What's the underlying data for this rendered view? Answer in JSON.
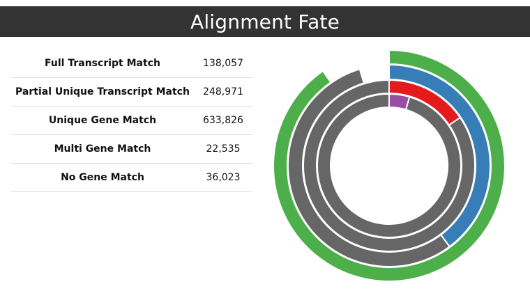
{
  "title": "Alignment Fate",
  "table": {
    "rows": [
      {
        "label": "Full Transcript Match",
        "value": "138,057"
      },
      {
        "label": "Partial Unique Transcript Match",
        "value": "248,971"
      },
      {
        "label": "Unique Gene Match",
        "value": "633,826"
      },
      {
        "label": "Multi Gene Match",
        "value": "22,535"
      },
      {
        "label": "No Gene Match",
        "value": "36,023"
      }
    ]
  },
  "chart_data": {
    "type": "pie",
    "subtype": "concentric-donut",
    "rings": [
      {
        "ring": "outer",
        "segments": [
          {
            "fraction": 0.903,
            "color": "#4daf4a"
          },
          {
            "fraction": 0.097,
            "color": "#ffffff"
          }
        ]
      },
      {
        "ring": "second",
        "segments": [
          {
            "fraction": 0.398,
            "color": "#377eb8"
          },
          {
            "fraction": 0.555,
            "color": "#666666"
          },
          {
            "fraction": 0.047,
            "color": "#ffffff"
          }
        ]
      },
      {
        "ring": "third",
        "segments": [
          {
            "fraction": 0.155,
            "color": "#e41a1c"
          },
          {
            "fraction": 0.845,
            "color": "#666666"
          }
        ]
      },
      {
        "ring": "inner",
        "segments": [
          {
            "fraction": 0.046,
            "color": "#984ea3"
          },
          {
            "fraction": 0.954,
            "color": "#666666"
          }
        ]
      }
    ],
    "colors": {
      "green": "#4daf4a",
      "blue": "#377eb8",
      "red": "#e41a1c",
      "purple": "#984ea3",
      "gray": "#666666"
    }
  }
}
